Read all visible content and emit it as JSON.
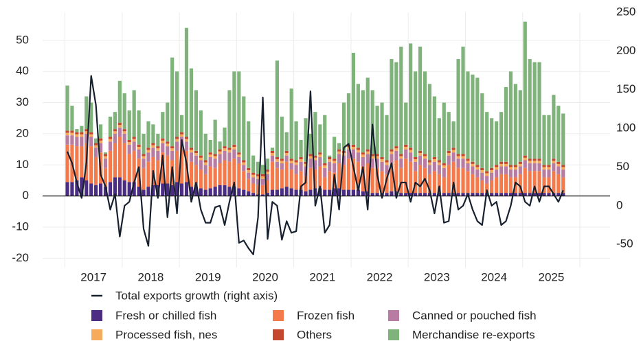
{
  "chart_data": {
    "type": "bar",
    "stacked": true,
    "grid": true,
    "categories": [
      null,
      null,
      null,
      null,
      null,
      null,
      "2017",
      null,
      null,
      null,
      null,
      null,
      null,
      null,
      null,
      null,
      null,
      null,
      "2018",
      null,
      null,
      null,
      null,
      null,
      null,
      null,
      null,
      null,
      null,
      null,
      "2019",
      null,
      null,
      null,
      null,
      null,
      null,
      null,
      null,
      null,
      null,
      null,
      "2020",
      null,
      null,
      null,
      null,
      null,
      null,
      null,
      null,
      null,
      null,
      null,
      "2021",
      null,
      null,
      null,
      null,
      null,
      null,
      null,
      null,
      null,
      null,
      null,
      "2022",
      null,
      null,
      null,
      null,
      null,
      null,
      null,
      null,
      null,
      null,
      null,
      "2023",
      null,
      null,
      null,
      null,
      null,
      null,
      null,
      null,
      null,
      null,
      null,
      "2024",
      null,
      null,
      null,
      null,
      null,
      null,
      null,
      null,
      null,
      null,
      null,
      "2025",
      null,
      null
    ],
    "ylim": [
      -23,
      59
    ],
    "yticks": [
      -20,
      -10,
      0,
      10,
      20,
      30,
      40,
      50
    ],
    "y2lim": [
      -80,
      250
    ],
    "y2ticks": [
      -50,
      0,
      50,
      100,
      150,
      200,
      250
    ],
    "series": [
      {
        "name": "Total exports growth (right axis)",
        "type": "line",
        "axis": "y2",
        "color": "#17202e",
        "values": [
          70,
          55,
          30,
          10,
          55,
          168,
          130,
          40,
          25,
          -5,
          15,
          -40,
          0,
          5,
          30,
          50,
          -30,
          -52,
          45,
          10,
          65,
          -15,
          50,
          -10,
          85,
          55,
          5,
          30,
          -5,
          -22,
          -22,
          -2,
          0,
          -25,
          5,
          30,
          -48,
          -45,
          -55,
          -63,
          -15,
          140,
          -43,
          5,
          0,
          -44,
          -20,
          -35,
          -33,
          25,
          30,
          148,
          0,
          25,
          -35,
          -25,
          40,
          -5,
          75,
          80,
          50,
          20,
          50,
          -5,
          105,
          40,
          10,
          35,
          55,
          10,
          30,
          30,
          5,
          30,
          25,
          35,
          20,
          -10,
          25,
          -22,
          -20,
          30,
          -5,
          0,
          15,
          -5,
          -20,
          -25,
          20,
          0,
          5,
          -25,
          -20,
          0,
          30,
          25,
          5,
          0,
          25,
          5,
          25,
          25,
          15,
          5,
          20
        ]
      },
      {
        "name": "Fresh or chilled fish",
        "color": "#4b2e83",
        "values": [
          4.5,
          4.5,
          5,
          6,
          5,
          4,
          3.5,
          4,
          3,
          4.5,
          6,
          6,
          5,
          4.5,
          4.5,
          3,
          2,
          3,
          3.5,
          3.5,
          4,
          4,
          3.5,
          4.5,
          4,
          4.5,
          3,
          3,
          2.5,
          2,
          2.5,
          3,
          3.5,
          3.5,
          3,
          3,
          2.5,
          2,
          1.5,
          1,
          0.5,
          0.5,
          1,
          2,
          2,
          2.5,
          3,
          2.5,
          2,
          2,
          1.5,
          2,
          2.5,
          2.5,
          2,
          2,
          2.5,
          2.5,
          2,
          2,
          2,
          2,
          1.5,
          1.5,
          1,
          1,
          1,
          1,
          1.5,
          1.5,
          1,
          1,
          1,
          1,
          1,
          1,
          1,
          1,
          1,
          1,
          1,
          1,
          1,
          1,
          1,
          1,
          1,
          1,
          1,
          1,
          1,
          1,
          1,
          1,
          1,
          1,
          1,
          1,
          1,
          1,
          1,
          1,
          1,
          1,
          1
        ]
      },
      {
        "name": "Frozen fish",
        "color": "#f47a4c",
        "values": [
          12,
          12,
          11,
          10,
          12,
          12,
          9,
          10,
          6,
          10,
          11,
          13,
          12,
          9,
          10,
          9,
          7,
          8,
          9,
          8,
          10,
          9,
          8,
          10,
          12,
          10,
          8,
          7,
          6,
          5,
          7,
          6,
          7,
          8,
          8,
          9,
          8,
          6,
          4,
          3,
          3,
          3,
          4,
          9,
          7,
          6,
          8,
          6,
          5,
          6,
          5,
          7,
          6,
          7,
          4,
          6,
          5,
          8,
          8,
          10,
          10,
          9,
          8,
          9,
          8,
          8,
          7,
          6,
          9,
          10,
          8,
          11,
          10,
          7,
          9,
          8,
          6,
          7,
          6,
          5,
          9,
          10,
          8,
          8,
          7,
          6,
          5,
          4,
          3,
          4,
          5,
          6,
          6,
          5,
          5,
          6,
          8,
          7,
          7,
          7,
          5,
          5,
          7,
          6,
          5
        ]
      },
      {
        "name": "Canned or pouched fish",
        "color": "#b87ca2",
        "values": [
          3,
          3,
          3,
          3,
          3,
          3,
          3,
          3,
          3,
          3,
          3,
          3,
          3,
          3,
          3,
          3,
          3,
          3,
          3,
          3,
          3,
          3,
          3,
          3,
          3,
          3,
          3,
          3,
          3,
          3,
          3,
          3,
          3,
          3,
          3,
          3,
          2,
          2,
          2,
          2,
          2,
          2,
          2,
          2,
          2,
          2,
          2,
          2,
          3,
          3,
          3,
          3,
          3,
          3,
          3,
          3,
          3,
          3,
          3,
          3,
          3,
          3,
          3,
          3,
          3,
          3,
          3,
          3,
          3,
          3,
          3,
          3,
          3,
          3,
          3,
          3,
          3,
          3,
          3,
          3,
          3,
          3,
          3,
          3,
          2.5,
          2.5,
          2.5,
          2.5,
          2.5,
          2.5,
          2.5,
          2.5,
          2.5,
          2.5,
          2.5,
          2.5,
          2.5,
          2.5,
          2.5,
          2.5,
          2.5,
          2.5,
          2.5,
          2.5,
          2.5
        ]
      },
      {
        "name": "Processed fish, nes",
        "color": "#f6ab5c",
        "values": [
          0.8,
          0.8,
          0.8,
          0.8,
          0.8,
          0.8,
          0.8,
          0.8,
          0.8,
          0.8,
          0.8,
          0.8,
          0.8,
          0.8,
          0.8,
          0.8,
          0.8,
          0.8,
          0.8,
          0.8,
          0.8,
          0.8,
          0.8,
          0.8,
          0.8,
          0.8,
          0.8,
          0.8,
          0.8,
          0.8,
          0.8,
          0.8,
          0.8,
          0.8,
          0.8,
          0.8,
          0.8,
          0.8,
          0.8,
          0.8,
          0.8,
          0.8,
          0.8,
          0.8,
          0.8,
          0.8,
          0.8,
          0.8,
          0.8,
          0.8,
          0.8,
          0.8,
          0.8,
          0.8,
          0.8,
          0.8,
          0.8,
          0.8,
          0.8,
          0.8,
          0.8,
          0.8,
          0.8,
          0.8,
          0.8,
          0.8,
          0.8,
          0.8,
          0.8,
          0.8,
          0.8,
          0.8,
          0.8,
          0.8,
          0.8,
          0.8,
          0.8,
          0.8,
          0.8,
          0.8,
          0.8,
          0.8,
          0.8,
          0.8,
          0.8,
          0.8,
          0.8,
          0.8,
          0.8,
          0.8,
          0.8,
          0.8,
          0.8,
          0.8,
          0.8,
          0.8,
          0.8,
          0.8,
          0.8,
          0.8,
          0.8,
          0.8,
          0.8,
          0.8,
          0.8
        ]
      },
      {
        "name": "Others",
        "color": "#c4482f",
        "values": [
          0.7,
          0.7,
          0.7,
          0.7,
          0.7,
          0.7,
          0.7,
          0.7,
          0.7,
          0.7,
          0.7,
          0.7,
          0.7,
          0.7,
          0.7,
          0.7,
          0.7,
          0.7,
          0.7,
          0.7,
          0.7,
          0.7,
          0.7,
          0.7,
          0.7,
          0.7,
          0.7,
          0.7,
          0.7,
          0.7,
          0.7,
          0.7,
          0.7,
          0.7,
          0.7,
          0.7,
          0.7,
          0.7,
          0.7,
          0.7,
          0.7,
          0.7,
          0.7,
          0.7,
          0.7,
          0.7,
          0.7,
          0.7,
          0.7,
          0.7,
          0.7,
          0.7,
          0.7,
          0.7,
          0.7,
          0.7,
          0.7,
          0.7,
          0.7,
          0.7,
          0.7,
          0.7,
          0.7,
          0.7,
          0.7,
          0.7,
          0.7,
          0.7,
          0.7,
          0.7,
          0.7,
          0.7,
          0.7,
          0.7,
          0.7,
          0.7,
          0.7,
          0.7,
          0.7,
          0.7,
          0.7,
          0.7,
          0.7,
          0.7,
          0.7,
          0.7,
          0.7,
          0.7,
          0.7,
          0.7,
          0.7,
          0.7,
          0.7,
          0.7,
          0.7,
          0.7,
          0.7,
          0.7,
          0.7,
          0.7,
          0.7,
          0.7,
          0.7,
          0.7,
          0.7
        ]
      },
      {
        "name": "Merchandise re-exports",
        "color": "#7fb37b",
        "values": [
          14.5,
          8,
          1,
          2,
          10.5,
          9.5,
          1.5,
          4.5,
          0.5,
          6.5,
          5.5,
          13.5,
          11.5,
          9.5,
          15,
          11,
          6.5,
          8.5,
          6,
          4,
          8.5,
          12.5,
          28.5,
          21,
          5.5,
          35,
          25.5,
          19.5,
          14.5,
          8.5,
          4,
          11,
          2.5,
          6,
          18.5,
          23.5,
          26,
          20.5,
          15,
          5.5,
          4,
          3,
          3.5,
          1,
          31,
          13.5,
          6,
          22.5,
          12.5,
          5.5,
          14,
          6.5,
          14,
          9,
          15.5,
          0.5,
          7,
          2,
          15.5,
          16.5,
          29.5,
          20.5,
          20,
          23,
          20.5,
          15.5,
          17.5,
          14.5,
          29,
          27,
          34.5,
          13.5,
          33.5,
          27.5,
          33.5,
          26.5,
          24.5,
          19.5,
          13.5,
          19.5,
          12.5,
          8.5,
          30.5,
          34.5,
          28,
          28,
          28,
          24,
          19,
          16,
          14,
          16,
          24,
          30,
          26,
          23,
          43,
          32,
          31,
          31,
          16,
          16,
          20.5,
          18,
          16.5
        ]
      }
    ]
  }
}
